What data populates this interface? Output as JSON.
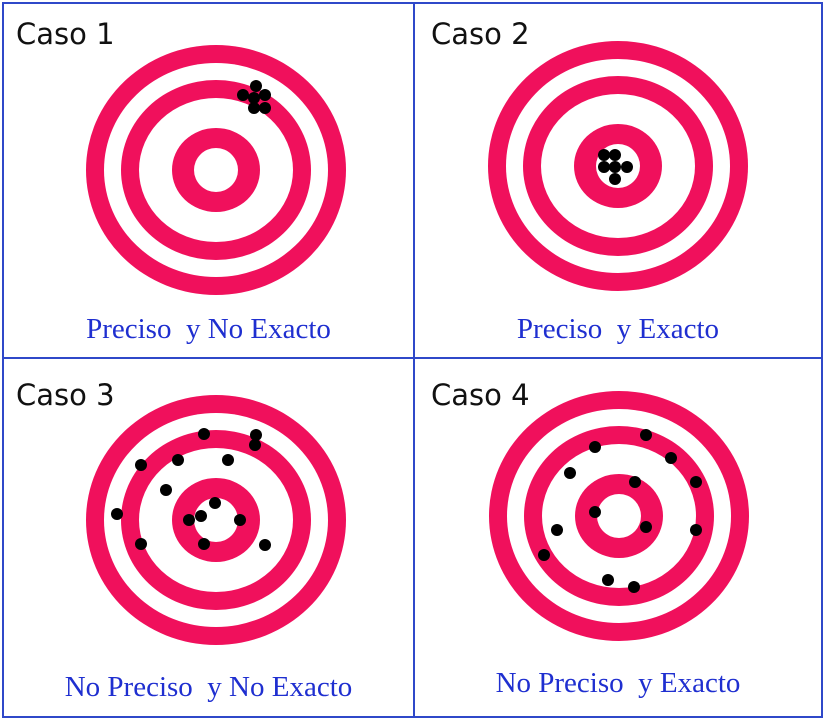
{
  "panels": [
    {
      "title": "Caso 1",
      "caption": "Preciso  y No Exacto",
      "target_icon": "bullseye-target-icon",
      "hits": [
        [
          40,
          -84
        ],
        [
          49,
          -75
        ],
        [
          27,
          -75
        ],
        [
          38,
          -72
        ],
        [
          49,
          -62
        ],
        [
          38,
          -62
        ]
      ]
    },
    {
      "title": "Caso 2",
      "caption": "Preciso  y Exacto",
      "target_icon": "bullseye-target-icon",
      "hits": [
        [
          -14,
          -11
        ],
        [
          -3,
          -11
        ],
        [
          -14,
          1
        ],
        [
          -3,
          1
        ],
        [
          9,
          1
        ],
        [
          -3,
          13
        ]
      ]
    },
    {
      "title": "Caso 3",
      "caption": "No Preciso  y No Exacto",
      "target_icon": "bullseye-target-icon",
      "hits": [
        [
          -12,
          -86
        ],
        [
          40,
          -85
        ],
        [
          39,
          -75
        ],
        [
          -75,
          -55
        ],
        [
          -38,
          -60
        ],
        [
          12,
          -60
        ],
        [
          -50,
          -30
        ],
        [
          -1,
          -17
        ],
        [
          -27,
          0
        ],
        [
          -15,
          -4
        ],
        [
          24,
          0
        ],
        [
          -99,
          -6
        ],
        [
          -75,
          24
        ],
        [
          -12,
          24
        ],
        [
          49,
          25
        ]
      ]
    },
    {
      "title": "Caso 4",
      "caption": "No Preciso  y Exacto",
      "target_icon": "bullseye-target-icon",
      "hits": [
        [
          27,
          -81
        ],
        [
          -24,
          -69
        ],
        [
          52,
          -58
        ],
        [
          -49,
          -43
        ],
        [
          77,
          -34
        ],
        [
          16,
          -34
        ],
        [
          -24,
          -4
        ],
        [
          27,
          11
        ],
        [
          -62,
          14
        ],
        [
          77,
          14
        ],
        [
          -75,
          39
        ],
        [
          -11,
          64
        ],
        [
          15,
          71
        ]
      ]
    }
  ],
  "colors": {
    "border": "#2f48c9",
    "target_ring": "#f0105c",
    "background": "#ffffff",
    "hit": "#000000",
    "title_text": "#111111",
    "caption_text": "#1f2fd0"
  }
}
